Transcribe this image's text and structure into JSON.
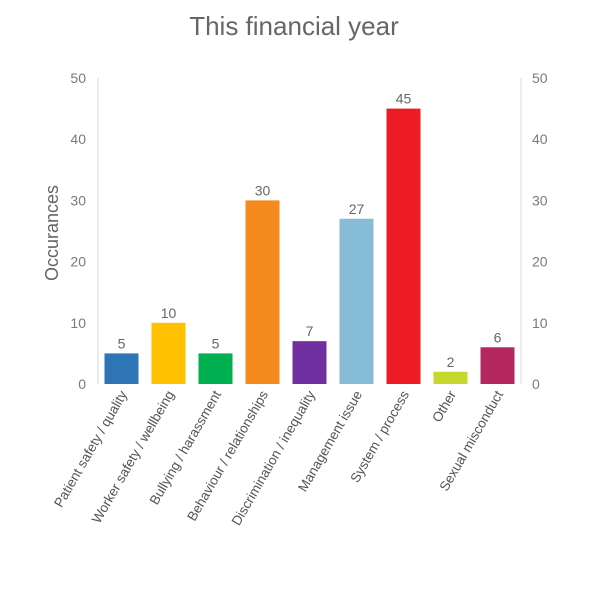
{
  "chart_data": {
    "type": "bar",
    "title": "This financial year",
    "ylabel": "Occurances",
    "categories": [
      "Patient safety / quality",
      "Worker safety / wellbeing",
      "Bullying / harassment",
      "Behaviour / relationships",
      "Discrimination / inequality",
      "Management issue",
      "System / process",
      "Other",
      "Sexual misconduct"
    ],
    "values": [
      5,
      10,
      5,
      30,
      7,
      27,
      45,
      2,
      6
    ],
    "colors": [
      "#2e75b6",
      "#ffc000",
      "#00b050",
      "#f58a1f",
      "#7030a0",
      "#87bcd6",
      "#ed1c24",
      "#c4d82e",
      "#b5275f"
    ],
    "ylim": [
      0,
      50
    ],
    "yticks": [
      0,
      10,
      20,
      30,
      40,
      50
    ],
    "y2ticks": [
      0,
      10,
      20,
      30,
      40,
      50
    ],
    "grid": false,
    "legend": "none"
  }
}
